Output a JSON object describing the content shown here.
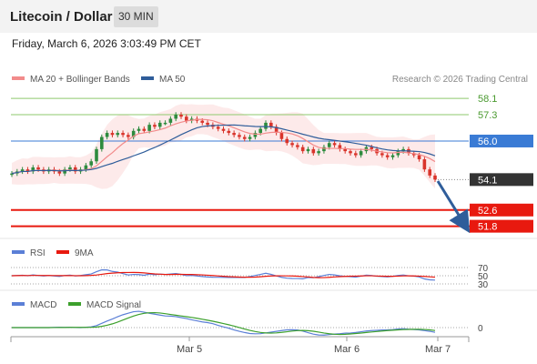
{
  "header": {
    "title": "Litecoin / Dollar",
    "interval": "30 MIN"
  },
  "datetime": "Friday, March 6, 2026 3:03:49 PM CET",
  "legend": {
    "bb": "MA 20 + Bollinger Bands",
    "ma50": "MA 50",
    "credit": "Research © 2026 Trading Central"
  },
  "rsi_legend": {
    "rsi": "RSI",
    "ma": "9MA"
  },
  "macd_legend": {
    "macd": "MACD",
    "signal": "MACD Signal"
  },
  "colors": {
    "bb": "#f28b8b",
    "ma50": "#2f5d9a",
    "resistance": "#8ec96e",
    "pivot": "#3a7bd5",
    "support": "#e8190f",
    "price": "#333333",
    "up": "#2e8b3e",
    "down": "#d9342b",
    "rsi": "#5b7fd6",
    "macd_signal": "#3ca02c"
  },
  "chart_data": {
    "type": "candlestick",
    "x_labels": [
      "Mar 5",
      "Mar 6",
      "Mar 7"
    ],
    "ylim": [
      51.2,
      58.6
    ],
    "levels": [
      {
        "value": 58.1,
        "label": "58.1",
        "kind": "resistance"
      },
      {
        "value": 57.3,
        "label": "57.3",
        "kind": "resistance"
      },
      {
        "value": 56.0,
        "label": "56.0",
        "kind": "pivot"
      },
      {
        "value": 54.1,
        "label": "54.1",
        "kind": "price"
      },
      {
        "value": 52.6,
        "label": "52.6",
        "kind": "support"
      },
      {
        "value": 51.8,
        "label": "51.8",
        "kind": "support"
      }
    ],
    "candles_approx_close": [
      54.4,
      54.5,
      54.6,
      54.5,
      54.7,
      54.6,
      54.5,
      54.6,
      54.5,
      54.4,
      54.6,
      54.7,
      54.5,
      54.6,
      54.8,
      55.0,
      55.6,
      56.2,
      56.4,
      56.3,
      56.4,
      56.3,
      56.2,
      56.5,
      56.6,
      56.5,
      56.8,
      56.7,
      56.9,
      56.9,
      57.1,
      57.3,
      57.2,
      57.0,
      57.1,
      57.0,
      56.9,
      56.8,
      56.7,
      56.6,
      56.5,
      56.4,
      56.3,
      56.2,
      56.1,
      56.2,
      56.4,
      56.6,
      56.9,
      56.7,
      56.4,
      56.1,
      55.9,
      55.8,
      55.7,
      55.5,
      55.6,
      55.4,
      55.5,
      55.7,
      55.9,
      55.8,
      55.6,
      55.5,
      55.4,
      55.3,
      55.5,
      55.7,
      55.6,
      55.4,
      55.3,
      55.2,
      55.3,
      55.5,
      55.6,
      55.4,
      55.3,
      55.1,
      54.6,
      54.3,
      54.1
    ],
    "projection": {
      "from": 54.1,
      "to": 51.8
    },
    "rsi": {
      "levels": [
        70,
        50,
        30
      ]
    },
    "macd": {
      "levels": [
        0
      ]
    }
  }
}
